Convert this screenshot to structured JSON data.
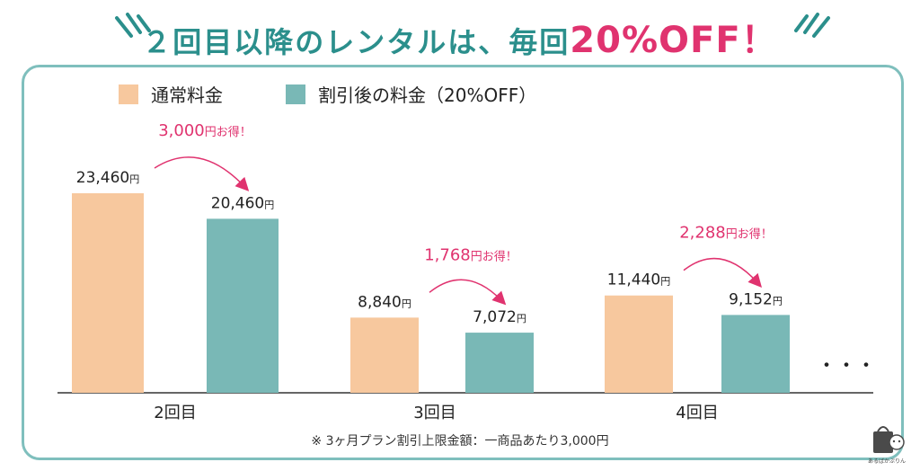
{
  "header": {
    "title_main": "２回目以降のレンタルは、毎回",
    "title_highlight": "20%OFF！"
  },
  "colors": {
    "teal": "#2b8f8c",
    "regular": "#f7c89e",
    "discount": "#79b8b6",
    "saving": "#e0336f",
    "border": "#7fbfbd"
  },
  "chart_data": {
    "type": "bar",
    "categories": [
      "2回目",
      "3回目",
      "4回目"
    ],
    "series": [
      {
        "name": "通常料金",
        "values": [
          23460,
          8840,
          11440
        ]
      },
      {
        "name": "割引後の料金（20%OFF）",
        "values": [
          20460,
          7072,
          9152
        ]
      }
    ],
    "value_labels": [
      [
        "23,460",
        "8,840",
        "11,440"
      ],
      [
        "20,460",
        "7,072",
        "9,152"
      ]
    ],
    "unit": "円",
    "savings": [
      "3,000",
      "1,768",
      "2,288"
    ],
    "savings_suffix": "円お得！",
    "continuation": "・・・",
    "legend_position": "top-left",
    "grid": false
  },
  "footnote": "※ 3ヶ月プラン割引上限金額：一商品あたり3,000円",
  "logo": {
    "icon": "shopping-bag-icon",
    "text": "あるばかぷりん"
  }
}
